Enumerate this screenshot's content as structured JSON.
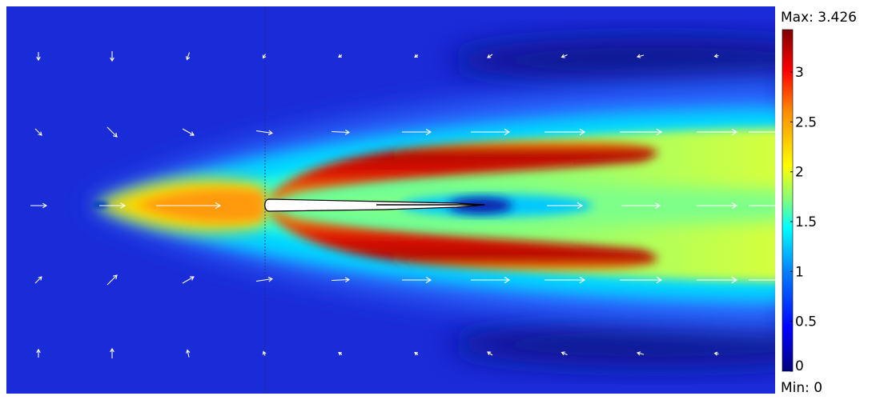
{
  "chart_data": {
    "type": "heatmap",
    "title": "",
    "colormap": "rainbow (blue-cyan-green-yellow-orange-red)",
    "range": {
      "min": 0,
      "max": 3.426
    },
    "max_label": "Max: 3.426",
    "min_label": "Min: 0",
    "colorbar_ticks": [
      "0",
      "0.5",
      "1",
      "1.5",
      "2",
      "2.5",
      "3"
    ],
    "colorbar_tick_values": [
      0,
      0.5,
      1,
      1.5,
      2,
      2.5,
      3
    ],
    "colorscale": [
      "#00007f",
      "#0000ff",
      "#007fff",
      "#00ffff",
      "#7fff7f",
      "#ffff00",
      "#ff7f00",
      "#ff0000",
      "#7f0000"
    ],
    "field_description": "Velocity magnitude field with arrow glyphs for the flow around a slender body",
    "arrow_color": "#ffffff",
    "body_color": "#ffffff"
  }
}
